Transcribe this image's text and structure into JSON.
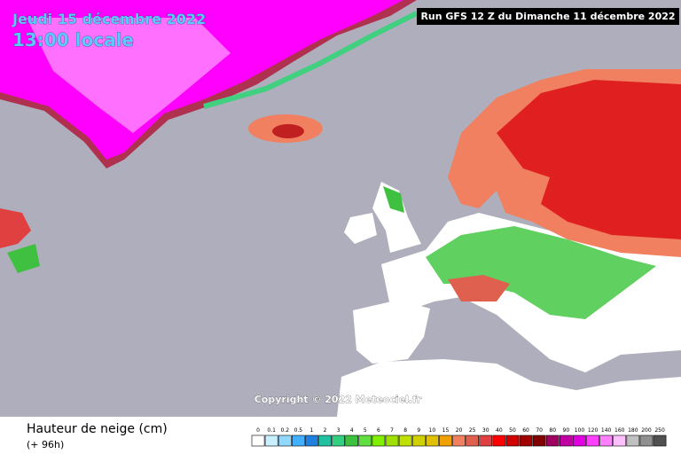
{
  "header": {
    "date": "Jeudi 15 décembre 2022",
    "time": "13:00 locale",
    "run": "Run GFS 12 Z du Dimanche 11 décembre 2022"
  },
  "map": {
    "copyright": "Copyright © 2022 Meteociel.fr"
  },
  "legend": {
    "title": "Hauteur de neige (cm)",
    "subtitle": "(+ 96h)",
    "entries": [
      {
        "label": "0",
        "color": "#ffffff"
      },
      {
        "label": "0.1",
        "color": "#c8f0ff"
      },
      {
        "label": "0.2",
        "color": "#90d8ff"
      },
      {
        "label": "0.5",
        "color": "#40b0ff"
      },
      {
        "label": "1",
        "color": "#2080e0"
      },
      {
        "label": "2",
        "color": "#20c0a0"
      },
      {
        "label": "3",
        "color": "#30d080"
      },
      {
        "label": "4",
        "color": "#40c040"
      },
      {
        "label": "5",
        "color": "#60e040"
      },
      {
        "label": "6",
        "color": "#80f000"
      },
      {
        "label": "7",
        "color": "#a0e000"
      },
      {
        "label": "8",
        "color": "#c0e000"
      },
      {
        "label": "9",
        "color": "#d0d000"
      },
      {
        "label": "10",
        "color": "#e0c000"
      },
      {
        "label": "15",
        "color": "#f0a000"
      },
      {
        "label": "20",
        "color": "#f08060"
      },
      {
        "label": "25",
        "color": "#e06050"
      },
      {
        "label": "30",
        "color": "#e04040"
      },
      {
        "label": "40",
        "color": "#ff0000"
      },
      {
        "label": "50",
        "color": "#d00000"
      },
      {
        "label": "60",
        "color": "#a00000"
      },
      {
        "label": "70",
        "color": "#800000"
      },
      {
        "label": "80",
        "color": "#a00060"
      },
      {
        "label": "90",
        "color": "#c000a0"
      },
      {
        "label": "100",
        "color": "#e000e0"
      },
      {
        "label": "120",
        "color": "#ff40ff"
      },
      {
        "label": "140",
        "color": "#ff80ff"
      },
      {
        "label": "160",
        "color": "#ffc0ff"
      },
      {
        "label": "180",
        "color": "#c0c0c0"
      },
      {
        "label": "200",
        "color": "#909090"
      },
      {
        "label": "250",
        "color": "#505050"
      }
    ]
  }
}
